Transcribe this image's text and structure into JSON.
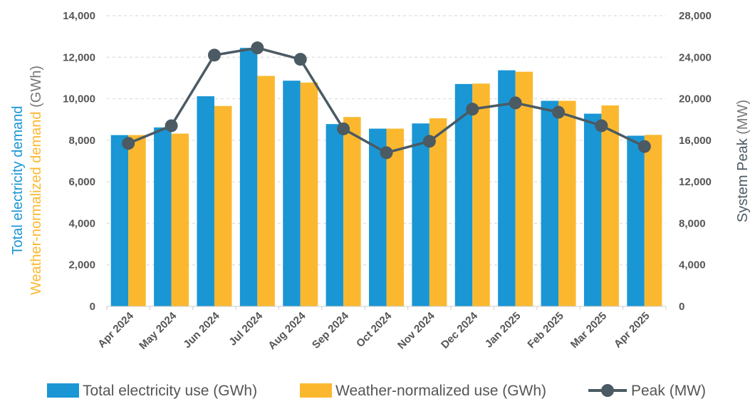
{
  "chart_data": {
    "type": "bar",
    "categories": [
      "Apr 2024",
      "May 2024",
      "Jun 2024",
      "Jul 2024",
      "Aug 2024",
      "Sep 2024",
      "Oct 2024",
      "Nov 2024",
      "Dec 2024",
      "Jan 2025",
      "Feb 2025",
      "Mar 2025",
      "Apr 2025"
    ],
    "series": [
      {
        "name": "Total electricity use (GWh)",
        "type": "bar",
        "axis": "left",
        "color": "#1a96d4",
        "values": [
          8250,
          8620,
          10120,
          12450,
          10870,
          8780,
          8560,
          8810,
          10710,
          11370,
          9900,
          9280,
          8220
        ]
      },
      {
        "name": "Weather-normalized use (GWh)",
        "type": "bar",
        "axis": "left",
        "color": "#fbb82f",
        "values": [
          8250,
          8320,
          9650,
          11100,
          10780,
          9120,
          8560,
          9060,
          10730,
          11300,
          9900,
          9680,
          8260
        ]
      },
      {
        "name": "Peak (MW)",
        "type": "line",
        "axis": "right",
        "color": "#4b5a63",
        "values": [
          15700,
          17400,
          24200,
          24900,
          23800,
          17100,
          14800,
          15900,
          19000,
          19600,
          18700,
          17400,
          15400
        ]
      }
    ],
    "y_left": {
      "label_part1": "Total electricity demand",
      "label_part2": "Weather-normalized demand",
      "label_unit": " (GWh)",
      "color1": "#1a96d4",
      "color2": "#fbb82f",
      "unit_color": "#777777",
      "range": [
        0,
        14000
      ],
      "ticks": [
        "0",
        "2,000",
        "4,000",
        "6,000",
        "8,000",
        "10,000",
        "12,000",
        "14,000"
      ]
    },
    "y_right": {
      "label": "System Peak",
      "label_unit": " (MW)",
      "color": "#4b5a63",
      "unit_color": "#777777",
      "range": [
        0,
        28000
      ],
      "ticks": [
        "0",
        "4,000",
        "8,000",
        "12,000",
        "16,000",
        "20,000",
        "24,000",
        "28,000"
      ]
    },
    "legend": {
      "position": "bottom",
      "items": [
        "Total electricity use (GWh)",
        "Weather-normalized use (GWh)",
        "Peak (MW)"
      ]
    },
    "grid": "horizontal-dashed"
  }
}
